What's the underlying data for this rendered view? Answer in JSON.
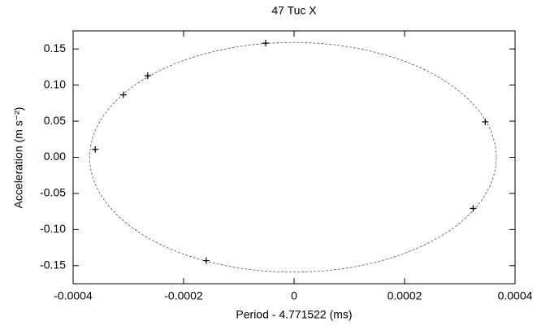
{
  "chart_data": {
    "type": "scatter",
    "title": "47 Tuc X",
    "x_label": "Period - 4.771522 (ms)",
    "y_label": "Acceleration (m s⁻²)",
    "x": [
      -5.15e-05,
      -0.000265,
      -0.000309,
      -0.00036,
      -0.000159,
      0.000346,
      0.000324
    ],
    "y": [
      0.158,
      0.113,
      0.0865,
      0.011,
      -0.143,
      0.049,
      -0.0708
    ],
    "color": "#000000",
    "ellipse": {
      "cx": -2e-06,
      "cy": 0,
      "rx": 0.000368,
      "ry": 0.159,
      "color": "#555555"
    },
    "xlim": [
      -0.0004,
      0.0004
    ],
    "ylim": [
      -0.175,
      0.175
    ],
    "xticks": [
      -0.0004,
      -0.0002,
      0,
      0.0002,
      0.0004
    ],
    "yticks": [
      0.15,
      {
        "value": 0.1,
        "label": "0.10"
      },
      0.05,
      {
        "value": 0,
        "label": "0.00"
      },
      -0.05,
      {
        "value": -0.1,
        "label": "-0.10"
      },
      -0.15
    ]
  }
}
